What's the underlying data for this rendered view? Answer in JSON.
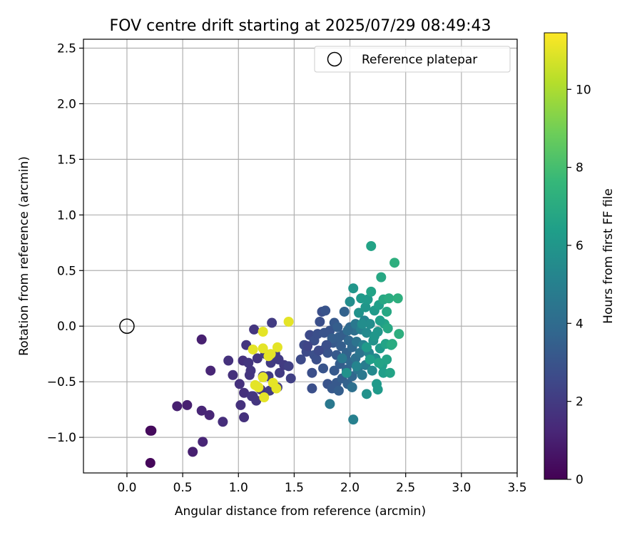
{
  "chart_data": {
    "type": "scatter",
    "title": "FOV centre drift starting at 2025/07/29 08:49:43",
    "xlabel": "Angular distance from reference (arcmin)",
    "ylabel": "Rotation from reference (arcmin)",
    "xlim": [
      -0.39,
      3.5
    ],
    "ylim": [
      -1.32,
      2.58
    ],
    "xticks": [
      "0.0",
      "0.5",
      "1.0",
      "1.5",
      "2.0",
      "2.5",
      "3.0",
      "3.5"
    ],
    "xtick_values": [
      0.0,
      0.5,
      1.0,
      1.5,
      2.0,
      2.5,
      3.0,
      3.5
    ],
    "yticks": [
      "−1.0",
      "−0.5",
      "0.0",
      "0.5",
      "1.0",
      "1.5",
      "2.0",
      "2.5"
    ],
    "ytick_values": [
      -1.0,
      -0.5,
      0.0,
      0.5,
      1.0,
      1.5,
      2.0,
      2.5
    ],
    "grid": true,
    "legend": {
      "position": "top-right",
      "label": "Reference platepar"
    },
    "reference_point": {
      "x": 0.0,
      "y": 0.0
    },
    "colorbar": {
      "label": "Hours from first FF file",
      "colormap": "viridis",
      "range": [
        0,
        11.45
      ],
      "ticks": [
        "0",
        "2",
        "4",
        "6",
        "8",
        "10"
      ],
      "tick_values": [
        0,
        2,
        4,
        6,
        8,
        10
      ]
    },
    "colormap_stops": [
      "#440154",
      "#482878",
      "#3e4989",
      "#31688e",
      "#26828e",
      "#1f9e89",
      "#35b779",
      "#6ece58",
      "#b5de2b",
      "#fde725"
    ],
    "points": [
      {
        "x": 0.21,
        "y": -1.23,
        "h": 0.2
      },
      {
        "x": 0.21,
        "y": -0.94,
        "h": 0.3
      },
      {
        "x": 0.22,
        "y": -0.94,
        "h": 0.3
      },
      {
        "x": 0.45,
        "y": -0.72,
        "h": 1.0
      },
      {
        "x": 0.54,
        "y": -0.71,
        "h": 1.0
      },
      {
        "x": 0.59,
        "y": -1.13,
        "h": 1.0
      },
      {
        "x": 0.67,
        "y": -0.12,
        "h": 1.0
      },
      {
        "x": 0.67,
        "y": -0.76,
        "h": 1.2
      },
      {
        "x": 0.68,
        "y": -1.04,
        "h": 1.2
      },
      {
        "x": 0.75,
        "y": -0.4,
        "h": 1.2
      },
      {
        "x": 0.74,
        "y": -0.8,
        "h": 1.2
      },
      {
        "x": 0.86,
        "y": -0.86,
        "h": 1.5
      },
      {
        "x": 0.91,
        "y": -0.31,
        "h": 1.6
      },
      {
        "x": 0.95,
        "y": -0.44,
        "h": 1.6
      },
      {
        "x": 1.01,
        "y": -0.52,
        "h": 1.6
      },
      {
        "x": 1.02,
        "y": -0.71,
        "h": 1.6
      },
      {
        "x": 1.04,
        "y": -0.31,
        "h": 1.6
      },
      {
        "x": 1.05,
        "y": -0.82,
        "h": 1.6
      },
      {
        "x": 1.05,
        "y": -0.6,
        "h": 1.6
      },
      {
        "x": 1.07,
        "y": -0.17,
        "h": 1.8
      },
      {
        "x": 1.09,
        "y": -0.33,
        "h": 1.8
      },
      {
        "x": 1.1,
        "y": -0.44,
        "h": 1.8
      },
      {
        "x": 1.11,
        "y": -0.4,
        "h": 1.8
      },
      {
        "x": 1.12,
        "y": -0.63,
        "h": 1.8
      },
      {
        "x": 1.13,
        "y": -0.63,
        "h": 1.8
      },
      {
        "x": 1.14,
        "y": -0.03,
        "h": 1.8
      },
      {
        "x": 1.16,
        "y": -0.67,
        "h": 1.8
      },
      {
        "x": 1.17,
        "y": -0.29,
        "h": 1.8
      },
      {
        "x": 1.2,
        "y": -0.57,
        "h": 1.8
      },
      {
        "x": 1.22,
        "y": -0.45,
        "h": 2.0
      },
      {
        "x": 1.24,
        "y": -0.25,
        "h": 2.0
      },
      {
        "x": 1.27,
        "y": -0.45,
        "h": 2.0
      },
      {
        "x": 1.28,
        "y": -0.58,
        "h": 2.0
      },
      {
        "x": 1.29,
        "y": -0.33,
        "h": 2.0
      },
      {
        "x": 1.3,
        "y": 0.03,
        "h": 2.0
      },
      {
        "x": 1.33,
        "y": -0.25,
        "h": 2.0
      },
      {
        "x": 1.35,
        "y": -0.55,
        "h": 2.0
      },
      {
        "x": 1.36,
        "y": -0.3,
        "h": 2.0
      },
      {
        "x": 1.37,
        "y": -0.42,
        "h": 2.0
      },
      {
        "x": 1.41,
        "y": -0.35,
        "h": 2.0
      },
      {
        "x": 1.45,
        "y": -0.36,
        "h": 2.2
      },
      {
        "x": 1.47,
        "y": -0.47,
        "h": 2.2
      },
      {
        "x": 1.13,
        "y": -0.21,
        "h": 11.0
      },
      {
        "x": 1.15,
        "y": -0.53,
        "h": 11.0
      },
      {
        "x": 1.18,
        "y": -0.55,
        "h": 11.0
      },
      {
        "x": 1.22,
        "y": -0.05,
        "h": 11.0
      },
      {
        "x": 1.22,
        "y": -0.2,
        "h": 11.0
      },
      {
        "x": 1.22,
        "y": -0.46,
        "h": 11.0
      },
      {
        "x": 1.23,
        "y": -0.64,
        "h": 11.0
      },
      {
        "x": 1.27,
        "y": -0.27,
        "h": 11.0
      },
      {
        "x": 1.29,
        "y": -0.25,
        "h": 11.0
      },
      {
        "x": 1.31,
        "y": -0.51,
        "h": 11.0
      },
      {
        "x": 1.34,
        "y": -0.56,
        "h": 11.0
      },
      {
        "x": 1.35,
        "y": -0.19,
        "h": 11.0
      },
      {
        "x": 1.45,
        "y": 0.04,
        "h": 11.0
      },
      {
        "x": 1.56,
        "y": -0.3,
        "h": 2.6
      },
      {
        "x": 1.59,
        "y": -0.17,
        "h": 2.6
      },
      {
        "x": 1.61,
        "y": -0.23,
        "h": 2.6
      },
      {
        "x": 1.64,
        "y": -0.08,
        "h": 2.6
      },
      {
        "x": 1.66,
        "y": -0.42,
        "h": 2.8
      },
      {
        "x": 1.66,
        "y": -0.56,
        "h": 2.8
      },
      {
        "x": 1.68,
        "y": -0.26,
        "h": 2.8
      },
      {
        "x": 1.68,
        "y": -0.13,
        "h": 2.8
      },
      {
        "x": 1.7,
        "y": -0.3,
        "h": 2.8
      },
      {
        "x": 1.71,
        "y": -0.07,
        "h": 2.8
      },
      {
        "x": 1.73,
        "y": 0.04,
        "h": 2.8
      },
      {
        "x": 1.75,
        "y": 0.13,
        "h": 2.8
      },
      {
        "x": 1.76,
        "y": -0.38,
        "h": 3.0
      },
      {
        "x": 1.77,
        "y": -0.21,
        "h": 3.0
      },
      {
        "x": 1.77,
        "y": -0.06,
        "h": 3.0
      },
      {
        "x": 1.78,
        "y": 0.14,
        "h": 3.0
      },
      {
        "x": 1.8,
        "y": -0.52,
        "h": 3.0
      },
      {
        "x": 1.8,
        "y": -0.24,
        "h": 3.0
      },
      {
        "x": 1.82,
        "y": -0.04,
        "h": 3.0
      },
      {
        "x": 1.82,
        "y": -0.7,
        "h": 4.6
      },
      {
        "x": 1.84,
        "y": -0.56,
        "h": 3.2
      },
      {
        "x": 1.85,
        "y": -0.15,
        "h": 3.2
      },
      {
        "x": 1.86,
        "y": -0.4,
        "h": 3.2
      },
      {
        "x": 1.86,
        "y": 0.03,
        "h": 3.2
      },
      {
        "x": 1.88,
        "y": -0.26,
        "h": 3.2
      },
      {
        "x": 1.88,
        "y": -0.51,
        "h": 3.2
      },
      {
        "x": 1.89,
        "y": -0.01,
        "h": 3.4
      },
      {
        "x": 1.9,
        "y": -0.1,
        "h": 3.4
      },
      {
        "x": 1.9,
        "y": -0.58,
        "h": 3.4
      },
      {
        "x": 1.91,
        "y": -0.34,
        "h": 3.4
      },
      {
        "x": 1.92,
        "y": -0.18,
        "h": 3.4
      },
      {
        "x": 1.93,
        "y": -0.47,
        "h": 3.4
      },
      {
        "x": 1.94,
        "y": -0.08,
        "h": 3.4
      },
      {
        "x": 1.95,
        "y": 0.13,
        "h": 3.6
      },
      {
        "x": 1.96,
        "y": -0.29,
        "h": 3.6
      },
      {
        "x": 1.97,
        "y": -0.39,
        "h": 3.6
      },
      {
        "x": 1.97,
        "y": -0.24,
        "h": 3.6
      },
      {
        "x": 1.98,
        "y": -0.52,
        "h": 3.6
      },
      {
        "x": 1.99,
        "y": -0.13,
        "h": 3.8
      },
      {
        "x": 2.0,
        "y": 0.22,
        "h": 5.6
      },
      {
        "x": 2.0,
        "y": -0.01,
        "h": 3.8
      },
      {
        "x": 2.01,
        "y": -0.33,
        "h": 3.8
      },
      {
        "x": 2.02,
        "y": -0.19,
        "h": 3.8
      },
      {
        "x": 2.02,
        "y": -0.45,
        "h": 3.8
      },
      {
        "x": 2.03,
        "y": 0.34,
        "h": 6.0
      },
      {
        "x": 2.03,
        "y": -0.84,
        "h": 5.0
      },
      {
        "x": 2.04,
        "y": -0.04,
        "h": 4.2
      },
      {
        "x": 2.05,
        "y": -0.29,
        "h": 4.2
      },
      {
        "x": 2.05,
        "y": 0.02,
        "h": 4.6
      },
      {
        "x": 2.06,
        "y": -0.14,
        "h": 4.4
      },
      {
        "x": 2.07,
        "y": -0.39,
        "h": 4.4
      },
      {
        "x": 2.08,
        "y": 0.12,
        "h": 5.8
      },
      {
        "x": 2.09,
        "y": -0.24,
        "h": 4.4
      },
      {
        "x": 2.1,
        "y": -0.03,
        "h": 5.0
      },
      {
        "x": 2.1,
        "y": 0.25,
        "h": 6.2
      },
      {
        "x": 2.11,
        "y": -0.44,
        "h": 4.6
      },
      {
        "x": 2.12,
        "y": -0.17,
        "h": 5.0
      },
      {
        "x": 2.13,
        "y": 0.05,
        "h": 5.2
      },
      {
        "x": 2.14,
        "y": -0.35,
        "h": 4.8
      },
      {
        "x": 2.14,
        "y": 0.17,
        "h": 6.0
      },
      {
        "x": 2.15,
        "y": -0.06,
        "h": 5.4
      },
      {
        "x": 2.15,
        "y": -0.61,
        "h": 5.8
      },
      {
        "x": 2.16,
        "y": 0.24,
        "h": 6.2
      },
      {
        "x": 2.17,
        "y": -0.24,
        "h": 5.2
      },
      {
        "x": 2.18,
        "y": 0.02,
        "h": 5.6
      },
      {
        "x": 2.19,
        "y": 0.72,
        "h": 6.6
      },
      {
        "x": 2.19,
        "y": 0.31,
        "h": 6.6
      },
      {
        "x": 2.2,
        "y": -0.4,
        "h": 5.4
      },
      {
        "x": 2.21,
        "y": -0.13,
        "h": 5.8
      },
      {
        "x": 2.22,
        "y": 0.14,
        "h": 6.2
      },
      {
        "x": 2.23,
        "y": -0.29,
        "h": 5.6
      },
      {
        "x": 2.24,
        "y": -0.52,
        "h": 6.2
      },
      {
        "x": 2.25,
        "y": -0.05,
        "h": 6.0
      },
      {
        "x": 2.25,
        "y": -0.57,
        "h": 6.2
      },
      {
        "x": 2.26,
        "y": 0.19,
        "h": 6.4
      },
      {
        "x": 2.27,
        "y": -0.2,
        "h": 6.2
      },
      {
        "x": 2.28,
        "y": 0.44,
        "h": 6.8
      },
      {
        "x": 2.29,
        "y": -0.35,
        "h": 6.4
      },
      {
        "x": 2.3,
        "y": 0.24,
        "h": 6.8
      },
      {
        "x": 2.3,
        "y": -0.42,
        "h": 6.4
      },
      {
        "x": 2.31,
        "y": 0.02,
        "h": 6.6
      },
      {
        "x": 2.32,
        "y": -0.16,
        "h": 6.6
      },
      {
        "x": 2.33,
        "y": 0.13,
        "h": 6.8
      },
      {
        "x": 2.33,
        "y": -0.3,
        "h": 6.6
      },
      {
        "x": 2.34,
        "y": -0.02,
        "h": 6.8
      },
      {
        "x": 2.35,
        "y": 0.25,
        "h": 7.0
      },
      {
        "x": 2.36,
        "y": -0.42,
        "h": 6.6
      },
      {
        "x": 2.37,
        "y": -0.17,
        "h": 6.8
      },
      {
        "x": 2.38,
        "y": -0.16,
        "h": 7.0
      },
      {
        "x": 2.4,
        "y": 0.57,
        "h": 7.2
      },
      {
        "x": 2.43,
        "y": 0.25,
        "h": 7.2
      },
      {
        "x": 2.44,
        "y": -0.07,
        "h": 7.2
      },
      {
        "x": 1.84,
        "y": -0.11,
        "h": 3.4
      },
      {
        "x": 1.93,
        "y": -0.29,
        "h": 4.6
      },
      {
        "x": 1.98,
        "y": -0.04,
        "h": 4.0
      },
      {
        "x": 2.06,
        "y": -0.36,
        "h": 5.2
      },
      {
        "x": 2.11,
        "y": 0.02,
        "h": 5.6
      },
      {
        "x": 2.15,
        "y": -0.19,
        "h": 6.2
      },
      {
        "x": 2.18,
        "y": -0.3,
        "h": 6.4
      },
      {
        "x": 2.22,
        "y": -0.09,
        "h": 6.0
      },
      {
        "x": 2.26,
        "y": -0.33,
        "h": 6.6
      },
      {
        "x": 2.27,
        "y": 0.05,
        "h": 6.4
      },
      {
        "x": 1.97,
        "y": -0.42,
        "h": 5.8
      },
      {
        "x": 2.02,
        "y": -0.55,
        "h": 4.2
      },
      {
        "x": 1.79,
        "y": -0.17,
        "h": 2.8
      },
      {
        "x": 1.72,
        "y": -0.22,
        "h": 2.6
      },
      {
        "x": 1.62,
        "y": -0.18,
        "h": 2.4
      }
    ]
  }
}
